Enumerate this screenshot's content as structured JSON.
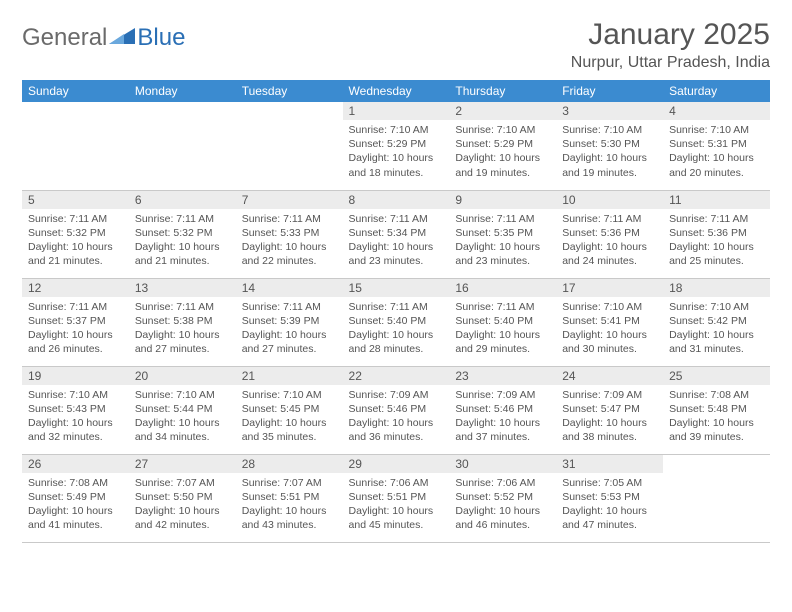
{
  "brand": {
    "part1": "General",
    "part2": "Blue"
  },
  "title": "January 2025",
  "location": "Nurpur, Uttar Pradesh, India",
  "colors": {
    "header_bg": "#3b8bd0",
    "header_text": "#ffffff",
    "daynum_bg": "#ececec",
    "body_text": "#555555",
    "border": "#c9c9c9",
    "brand_gray": "#6a6a6a",
    "brand_blue": "#2a6fb5"
  },
  "day_headers": [
    "Sunday",
    "Monday",
    "Tuesday",
    "Wednesday",
    "Thursday",
    "Friday",
    "Saturday"
  ],
  "weeks": [
    [
      null,
      null,
      null,
      {
        "n": "1",
        "sr": "7:10 AM",
        "ss": "5:29 PM",
        "dl": "10 hours and 18 minutes."
      },
      {
        "n": "2",
        "sr": "7:10 AM",
        "ss": "5:29 PM",
        "dl": "10 hours and 19 minutes."
      },
      {
        "n": "3",
        "sr": "7:10 AM",
        "ss": "5:30 PM",
        "dl": "10 hours and 19 minutes."
      },
      {
        "n": "4",
        "sr": "7:10 AM",
        "ss": "5:31 PM",
        "dl": "10 hours and 20 minutes."
      }
    ],
    [
      {
        "n": "5",
        "sr": "7:11 AM",
        "ss": "5:32 PM",
        "dl": "10 hours and 21 minutes."
      },
      {
        "n": "6",
        "sr": "7:11 AM",
        "ss": "5:32 PM",
        "dl": "10 hours and 21 minutes."
      },
      {
        "n": "7",
        "sr": "7:11 AM",
        "ss": "5:33 PM",
        "dl": "10 hours and 22 minutes."
      },
      {
        "n": "8",
        "sr": "7:11 AM",
        "ss": "5:34 PM",
        "dl": "10 hours and 23 minutes."
      },
      {
        "n": "9",
        "sr": "7:11 AM",
        "ss": "5:35 PM",
        "dl": "10 hours and 23 minutes."
      },
      {
        "n": "10",
        "sr": "7:11 AM",
        "ss": "5:36 PM",
        "dl": "10 hours and 24 minutes."
      },
      {
        "n": "11",
        "sr": "7:11 AM",
        "ss": "5:36 PM",
        "dl": "10 hours and 25 minutes."
      }
    ],
    [
      {
        "n": "12",
        "sr": "7:11 AM",
        "ss": "5:37 PM",
        "dl": "10 hours and 26 minutes."
      },
      {
        "n": "13",
        "sr": "7:11 AM",
        "ss": "5:38 PM",
        "dl": "10 hours and 27 minutes."
      },
      {
        "n": "14",
        "sr": "7:11 AM",
        "ss": "5:39 PM",
        "dl": "10 hours and 27 minutes."
      },
      {
        "n": "15",
        "sr": "7:11 AM",
        "ss": "5:40 PM",
        "dl": "10 hours and 28 minutes."
      },
      {
        "n": "16",
        "sr": "7:11 AM",
        "ss": "5:40 PM",
        "dl": "10 hours and 29 minutes."
      },
      {
        "n": "17",
        "sr": "7:10 AM",
        "ss": "5:41 PM",
        "dl": "10 hours and 30 minutes."
      },
      {
        "n": "18",
        "sr": "7:10 AM",
        "ss": "5:42 PM",
        "dl": "10 hours and 31 minutes."
      }
    ],
    [
      {
        "n": "19",
        "sr": "7:10 AM",
        "ss": "5:43 PM",
        "dl": "10 hours and 32 minutes."
      },
      {
        "n": "20",
        "sr": "7:10 AM",
        "ss": "5:44 PM",
        "dl": "10 hours and 34 minutes."
      },
      {
        "n": "21",
        "sr": "7:10 AM",
        "ss": "5:45 PM",
        "dl": "10 hours and 35 minutes."
      },
      {
        "n": "22",
        "sr": "7:09 AM",
        "ss": "5:46 PM",
        "dl": "10 hours and 36 minutes."
      },
      {
        "n": "23",
        "sr": "7:09 AM",
        "ss": "5:46 PM",
        "dl": "10 hours and 37 minutes."
      },
      {
        "n": "24",
        "sr": "7:09 AM",
        "ss": "5:47 PM",
        "dl": "10 hours and 38 minutes."
      },
      {
        "n": "25",
        "sr": "7:08 AM",
        "ss": "5:48 PM",
        "dl": "10 hours and 39 minutes."
      }
    ],
    [
      {
        "n": "26",
        "sr": "7:08 AM",
        "ss": "5:49 PM",
        "dl": "10 hours and 41 minutes."
      },
      {
        "n": "27",
        "sr": "7:07 AM",
        "ss": "5:50 PM",
        "dl": "10 hours and 42 minutes."
      },
      {
        "n": "28",
        "sr": "7:07 AM",
        "ss": "5:51 PM",
        "dl": "10 hours and 43 minutes."
      },
      {
        "n": "29",
        "sr": "7:06 AM",
        "ss": "5:51 PM",
        "dl": "10 hours and 45 minutes."
      },
      {
        "n": "30",
        "sr": "7:06 AM",
        "ss": "5:52 PM",
        "dl": "10 hours and 46 minutes."
      },
      {
        "n": "31",
        "sr": "7:05 AM",
        "ss": "5:53 PM",
        "dl": "10 hours and 47 minutes."
      },
      null
    ]
  ],
  "labels": {
    "sunrise": "Sunrise: ",
    "sunset": "Sunset: ",
    "daylight": "Daylight: "
  }
}
